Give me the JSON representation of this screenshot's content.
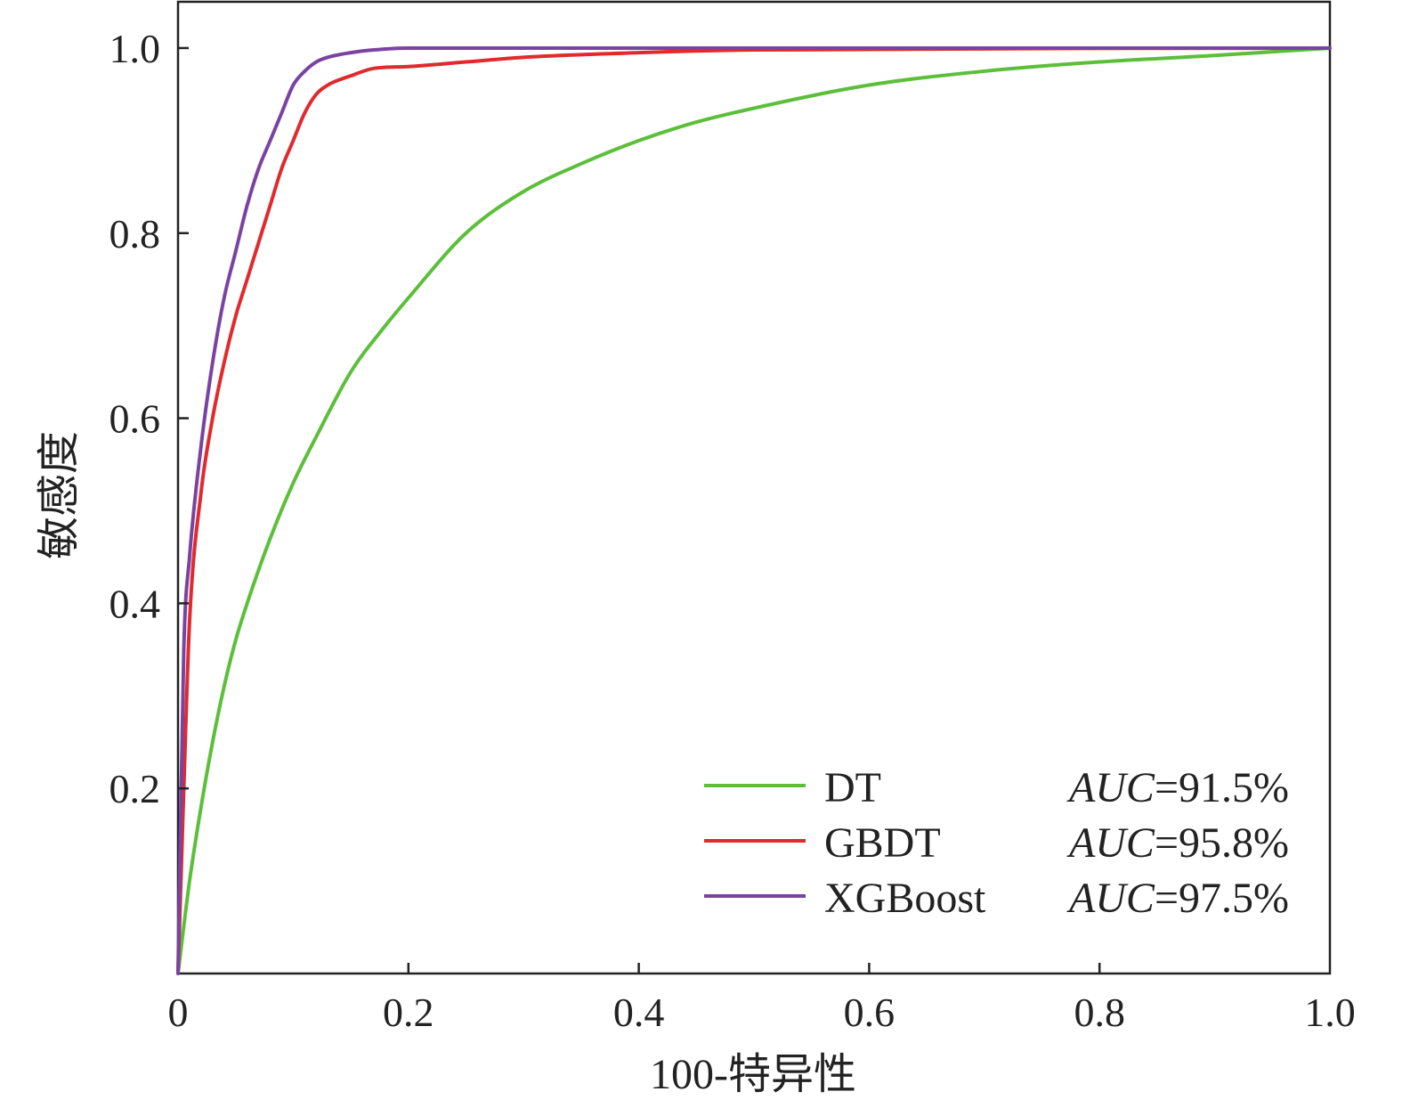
{
  "chart_data": {
    "type": "line",
    "title": "",
    "xlabel": "100-特异性",
    "ylabel": "敏感度",
    "xlim": [
      0,
      1.0
    ],
    "ylim": [
      0,
      1.05
    ],
    "xticks": [
      0,
      0.2,
      0.4,
      0.6,
      0.8,
      1.0
    ],
    "xtick_labels": [
      "0",
      "0.2",
      "0.4",
      "0.6",
      "0.8",
      "1.0"
    ],
    "yticks": [
      0.2,
      0.4,
      0.6,
      0.8,
      1.0
    ],
    "ytick_labels": [
      "0.2",
      "0.4",
      "0.6",
      "0.8",
      "1.0"
    ],
    "grid": false,
    "legend_position": "bottom-right",
    "series": [
      {
        "name": "DT",
        "auc_label": "AUC",
        "auc_value": "=91.5%",
        "color": "#5cbf3a",
        "x": [
          0,
          0.01,
          0.02,
          0.03,
          0.04,
          0.05,
          0.06,
          0.08,
          0.1,
          0.12,
          0.15,
          0.18,
          0.2,
          0.25,
          0.3,
          0.35,
          0.4,
          0.45,
          0.5,
          0.6,
          0.7,
          0.8,
          0.9,
          1.0
        ],
        "y": [
          0,
          0.1,
          0.18,
          0.25,
          0.31,
          0.36,
          0.4,
          0.47,
          0.53,
          0.58,
          0.65,
          0.7,
          0.73,
          0.8,
          0.845,
          0.875,
          0.9,
          0.92,
          0.935,
          0.96,
          0.975,
          0.985,
          0.992,
          1.0
        ]
      },
      {
        "name": "GBDT",
        "auc_label": "AUC",
        "auc_value": "=95.8%",
        "color": "#e02a2e",
        "x": [
          0,
          0.005,
          0.01,
          0.02,
          0.03,
          0.04,
          0.05,
          0.06,
          0.07,
          0.08,
          0.09,
          0.1,
          0.11,
          0.12,
          0.13,
          0.15,
          0.17,
          0.2,
          0.25,
          0.3,
          0.4,
          0.5,
          1.0
        ],
        "y": [
          0,
          0.2,
          0.38,
          0.52,
          0.6,
          0.66,
          0.71,
          0.75,
          0.79,
          0.83,
          0.87,
          0.9,
          0.93,
          0.95,
          0.96,
          0.97,
          0.978,
          0.98,
          0.985,
          0.99,
          0.995,
          0.998,
          1.0
        ]
      },
      {
        "name": "XGBoost",
        "auc_label": "AUC",
        "auc_value": "=97.5%",
        "color": "#7b43a1",
        "x": [
          0,
          0.005,
          0.01,
          0.02,
          0.03,
          0.04,
          0.05,
          0.06,
          0.07,
          0.08,
          0.09,
          0.1,
          0.11,
          0.12,
          0.13,
          0.15,
          0.17,
          0.2,
          0.3,
          1.0
        ],
        "y": [
          0,
          0.35,
          0.45,
          0.57,
          0.66,
          0.73,
          0.78,
          0.83,
          0.87,
          0.9,
          0.93,
          0.96,
          0.975,
          0.985,
          0.99,
          0.995,
          0.998,
          1.0,
          1.0,
          1.0
        ]
      }
    ]
  }
}
